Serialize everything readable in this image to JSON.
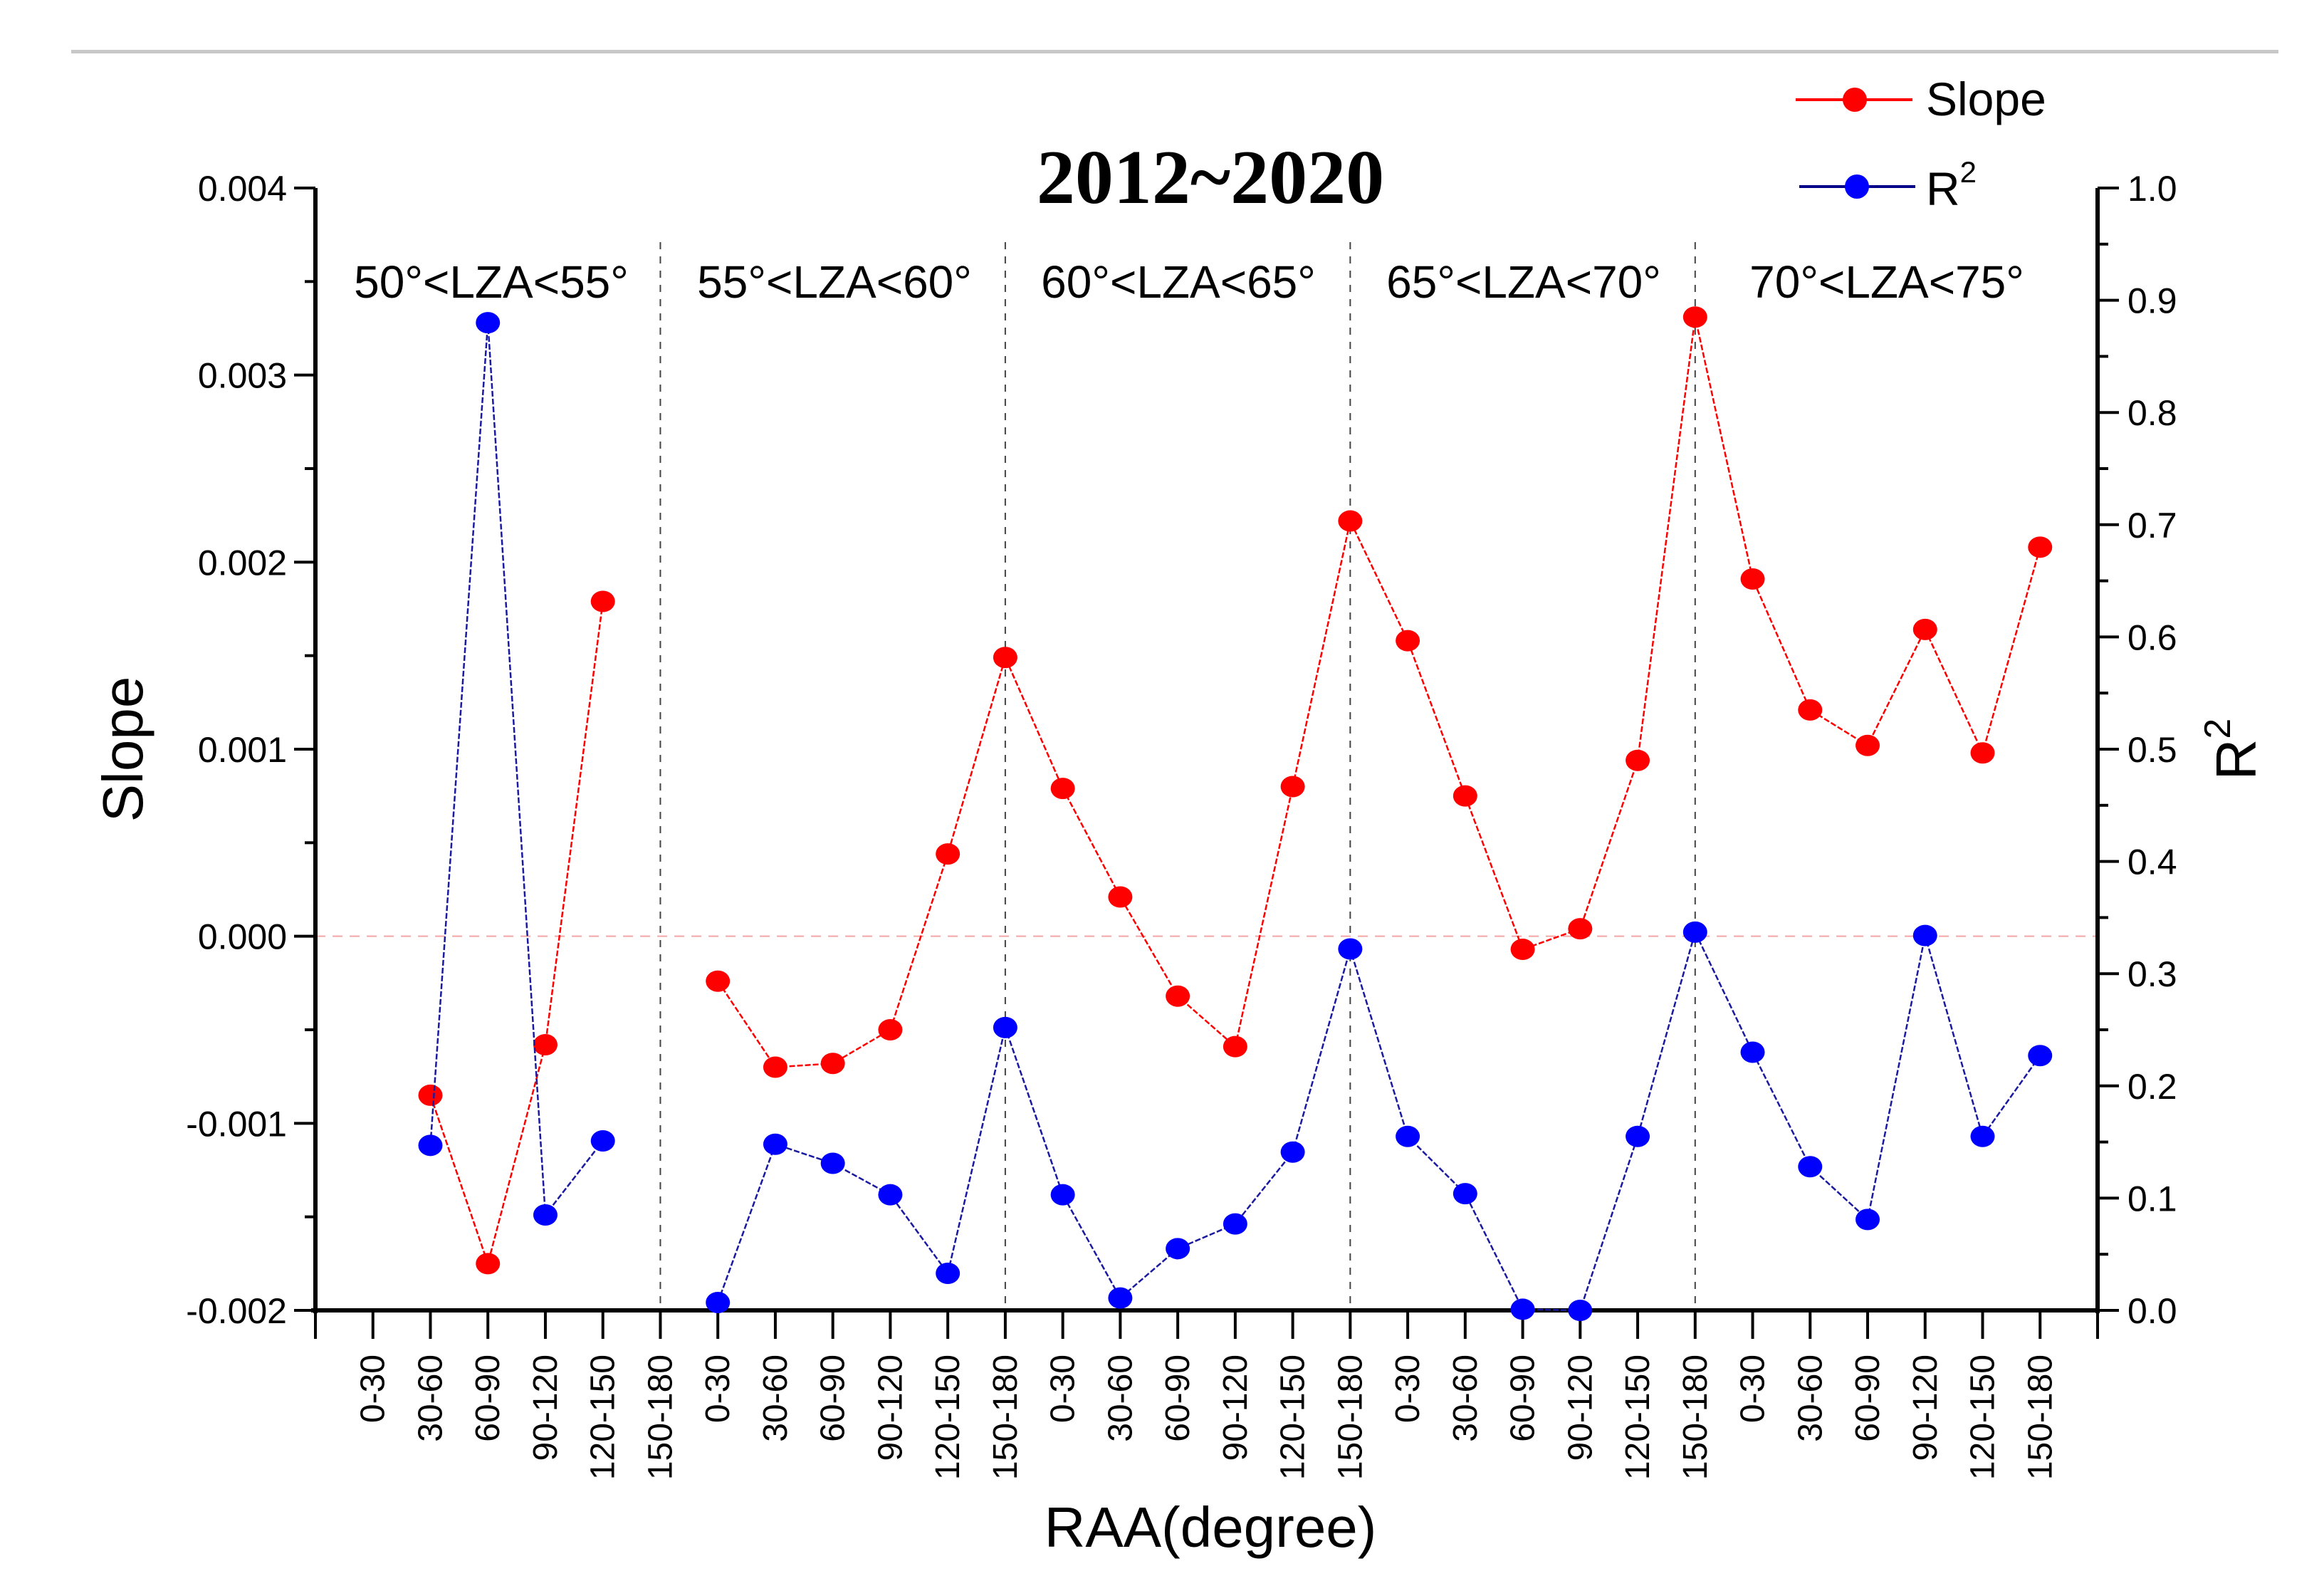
{
  "chart_data": {
    "type": "line",
    "title": "2012~2020",
    "xlabel": "RAA(degree)",
    "ylabel": "Slope",
    "y2label": "R2",
    "ylim": [
      -0.002,
      0.004
    ],
    "y2lim": [
      0.0,
      1.0
    ],
    "yticks": [
      "0.004",
      "0.003",
      "0.002",
      "0.001",
      "0.000",
      "-0.001",
      "-0.002"
    ],
    "y2ticks": [
      "1.0",
      "0.9",
      "0.8",
      "0.7",
      "0.6",
      "0.5",
      "0.4",
      "0.3",
      "0.2",
      "0.1",
      "0.0"
    ],
    "grid": false,
    "legend_position": "top-right",
    "zero_reference_line": 0.0,
    "groups": [
      "50°<LZA<55°",
      "55°<LZA<60°",
      "60°<LZA<65°",
      "65°<LZA<70°",
      "70°<LZA<75°"
    ],
    "categories": [
      "0-30",
      "30-60",
      "60-90",
      "90-120",
      "120-150",
      "150-180",
      "0-30",
      "30-60",
      "60-90",
      "90-120",
      "120-150",
      "150-180",
      "0-30",
      "30-60",
      "60-90",
      "90-120",
      "120-150",
      "150-180",
      "0-30",
      "30-60",
      "60-90",
      "90-120",
      "120-150",
      "150-180",
      "0-30",
      "30-60",
      "60-90",
      "90-120",
      "120-150",
      "150-180"
    ],
    "series": [
      {
        "name": "Slope",
        "color": "#ff0000",
        "axis": "left",
        "values": [
          null,
          -0.00085,
          -0.00175,
          -0.00058,
          0.00179,
          null,
          -0.00024,
          -0.0007,
          -0.00068,
          -0.0005,
          0.00044,
          0.00149,
          0.00079,
          0.00021,
          -0.00032,
          -0.00059,
          0.0008,
          0.00222,
          0.00158,
          0.00075,
          -7e-05,
          4e-05,
          0.00094,
          0.00331,
          0.00191,
          0.00121,
          0.00102,
          0.00164,
          0.00098,
          0.00208
        ]
      },
      {
        "name": "R2",
        "color": "#0000ff",
        "axis": "right",
        "values": [
          null,
          0.147,
          0.88,
          0.085,
          0.151,
          null,
          0.007,
          0.148,
          0.131,
          0.103,
          0.033,
          0.252,
          0.103,
          0.011,
          0.055,
          0.077,
          0.141,
          0.322,
          0.155,
          0.104,
          0.001,
          0.0,
          0.155,
          0.337,
          0.23,
          0.128,
          0.081,
          0.334,
          0.155,
          0.227
        ]
      }
    ]
  },
  "legend": {
    "slope_label": "Slope",
    "r2_label": "R",
    "r2_sup": "2"
  },
  "axes": {
    "left_label": "Slope",
    "right_label": "R",
    "right_label_sup": "2",
    "bottom_label": "RAA(degree)"
  }
}
